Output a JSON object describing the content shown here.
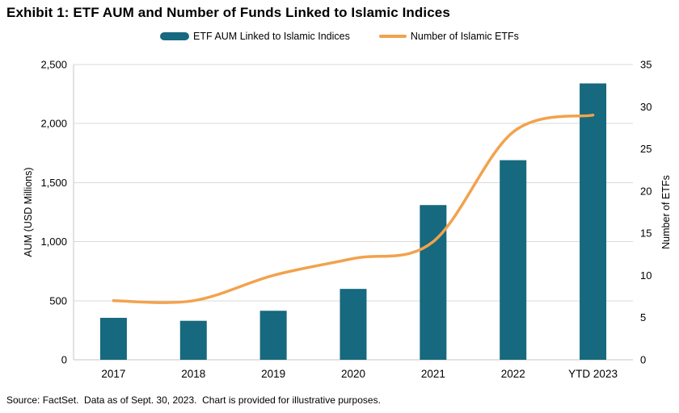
{
  "title": "Exhibit 1: ETF AUM and Number of Funds Linked to Islamic Indices",
  "legend": [
    {
      "label": "ETF AUM Linked to Islamic Indices",
      "swatch": "bar",
      "color": "#16697E"
    },
    {
      "label": "Number of Islamic ETFs",
      "swatch": "line",
      "color": "#F2A24D"
    }
  ],
  "source": "Source: FactSet.  Data as of Sept. 30, 2023.  Chart is provided for illustrative purposes.",
  "chart_data": {
    "type": "bar",
    "subtype": "bar-and-line-dual-axis",
    "categories": [
      "2017",
      "2018",
      "2019",
      "2020",
      "2021",
      "2022",
      "YTD 2023"
    ],
    "series": [
      {
        "name": "ETF AUM Linked to Islamic Indices",
        "type": "bar",
        "axis": "left",
        "color": "#16697E",
        "values": [
          355,
          330,
          415,
          600,
          1310,
          1690,
          2340
        ]
      },
      {
        "name": "Number of Islamic ETFs",
        "type": "line",
        "axis": "right",
        "color": "#F2A24D",
        "values": [
          7,
          7,
          10,
          12,
          14,
          27,
          29
        ]
      }
    ],
    "xlabel": "",
    "ylabel_left": "AUM (USD Millions)",
    "ylabel_right": "Number of ETFs",
    "y_left": {
      "min": 0,
      "max": 2500,
      "step": 500,
      "tick_labels": [
        "0",
        "500",
        "1,000",
        "1,500",
        "2,000",
        "2,500"
      ]
    },
    "y_right": {
      "min": 0,
      "max": 35,
      "step": 5,
      "tick_labels": [
        "0",
        "5",
        "10",
        "15",
        "20",
        "25",
        "30",
        "35"
      ]
    },
    "grid": "horizontal",
    "legend_position": "top",
    "colors": {
      "grid": "#D9D9D9",
      "axis": "#C6C6C6",
      "text": "#000000"
    }
  }
}
